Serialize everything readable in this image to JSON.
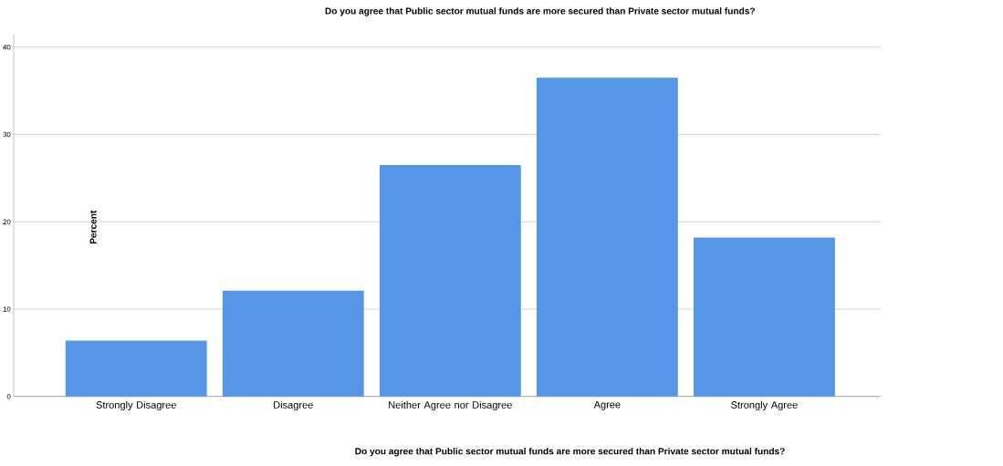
{
  "chart_data": {
    "type": "bar",
    "title": "Do you agree that Public sector mutual funds are more secured than Private sector mutual funds?",
    "xlabel": "Do you agree that Public sector mutual funds are more secured than Private sector mutual funds?",
    "ylabel": "Percent",
    "categories": [
      "Strongly Disagree",
      "Disagree",
      "Neither Agree nor Disagree",
      "Agree",
      "Strongly Agree"
    ],
    "values": [
      6.4,
      12.1,
      26.5,
      36.5,
      18.2
    ],
    "color": "#5596e6",
    "ylim": [
      0,
      41.5
    ],
    "yticks": [
      0,
      10,
      20,
      30,
      40
    ],
    "grid": "y"
  }
}
